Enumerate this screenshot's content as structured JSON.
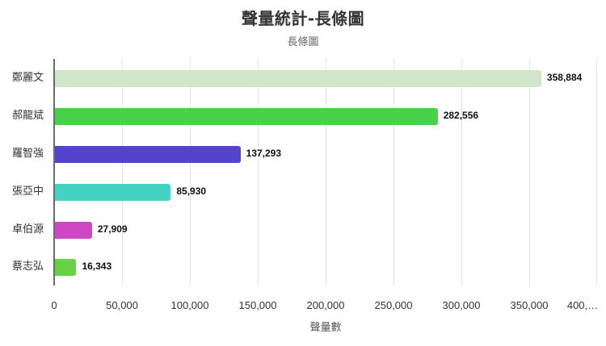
{
  "chart_data": {
    "type": "bar",
    "orientation": "horizontal",
    "title": "聲量統計-長條圖",
    "subtitle": "長條圖",
    "xlabel": "聲量數",
    "ylabel": "",
    "categories": [
      "鄭麗文",
      "郝龍斌",
      "羅智強",
      "張亞中",
      "卓伯源",
      "蔡志弘"
    ],
    "values": [
      358884,
      282556,
      137293,
      85930,
      27909,
      16343
    ],
    "value_labels": [
      "358,884",
      "282,556",
      "137,293",
      "85,930",
      "27,909",
      "16,343"
    ],
    "colors": [
      "#cfe6c9",
      "#48d04b",
      "#5443cc",
      "#44d2c2",
      "#cd46c4",
      "#67d145"
    ],
    "xlim": [
      0,
      400000
    ],
    "x_ticks": [
      "0",
      "50,000",
      "100,000",
      "150,000",
      "200,000",
      "250,000",
      "300,000",
      "350,000",
      "400,…"
    ],
    "grid": true,
    "legend": "none"
  }
}
